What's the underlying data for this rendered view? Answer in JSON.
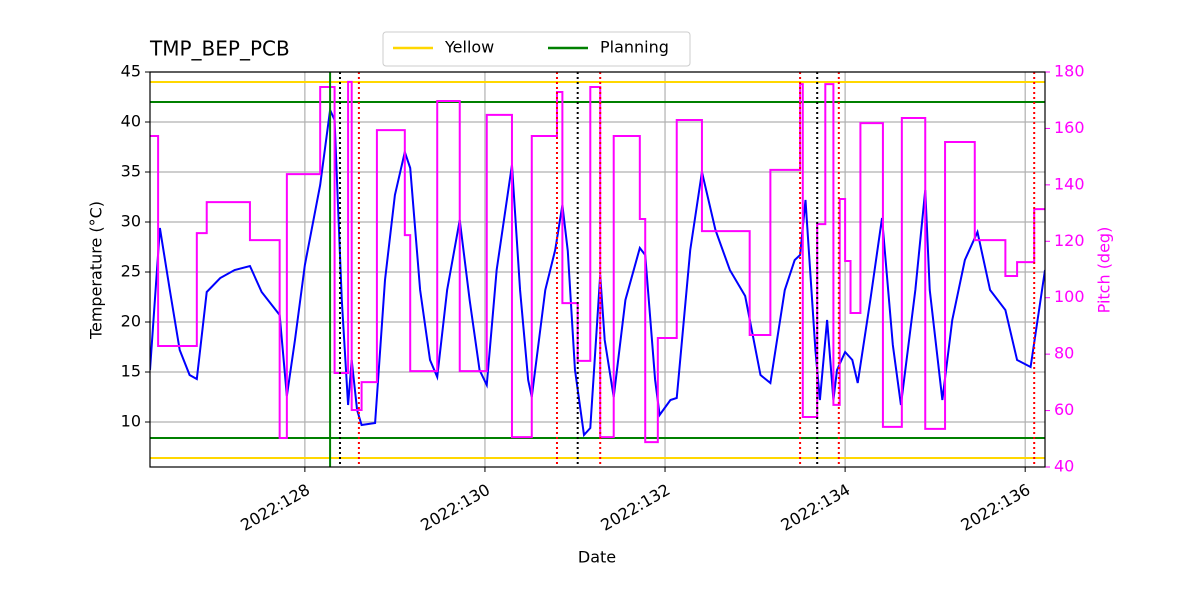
{
  "chart_data": {
    "type": "line",
    "title": "TMP_BEP_PCB",
    "xlabel": "Date",
    "ylabel": "Temperature (°C)",
    "y2label": "Pitch (deg)",
    "xlim": [
      126.28,
      136.22
    ],
    "xticks": [
      {
        "value": 128,
        "label": "2022:128"
      },
      {
        "value": 130,
        "label": "2022:130"
      },
      {
        "value": 132,
        "label": "2022:132"
      },
      {
        "value": 134,
        "label": "2022:134"
      },
      {
        "value": 136,
        "label": "2022:136"
      }
    ],
    "ylim": [
      5.5,
      45
    ],
    "yticks": [
      10,
      15,
      20,
      25,
      30,
      35,
      40,
      45
    ],
    "y2lim": [
      40,
      180
    ],
    "y2ticks": [
      40,
      60,
      80,
      100,
      120,
      140,
      160,
      180
    ],
    "grid": true,
    "legend": "upper center",
    "limit_lines": [
      {
        "name": "Yellow",
        "color": "#ffd700",
        "values": [
          44,
          6.4
        ]
      },
      {
        "name": "Planning",
        "color": "#008000",
        "values": [
          42,
          8.4
        ]
      }
    ],
    "vlines": [
      {
        "color": "#008000",
        "style": "solid",
        "x": [
          128.28
        ]
      },
      {
        "color": "#000000",
        "style": "dotted",
        "x": [
          128.39,
          131.03,
          133.69
        ]
      },
      {
        "color": "#ff0000",
        "style": "dotted",
        "x": [
          128.6,
          130.8,
          131.28,
          133.5,
          133.93,
          136.1
        ]
      }
    ],
    "series": [
      {
        "color": "#0000ff",
        "step": false,
        "x": [
          126.28,
          126.39,
          126.5,
          126.61,
          126.72,
          126.8,
          126.91,
          127.06,
          127.22,
          127.39,
          127.52,
          127.72,
          127.8,
          127.89,
          128.0,
          128.17,
          128.28,
          128.33,
          128.41,
          128.48,
          128.52,
          128.58,
          128.63,
          128.78,
          128.89,
          129.0,
          129.11,
          129.17,
          129.28,
          129.39,
          129.47,
          129.58,
          129.72,
          129.83,
          129.94,
          130.02,
          130.13,
          130.3,
          130.39,
          130.48,
          130.52,
          130.67,
          130.78,
          130.86,
          130.92,
          131.0,
          131.1,
          131.17,
          131.28,
          131.33,
          131.43,
          131.56,
          131.72,
          131.78,
          131.89,
          131.94,
          132.06,
          132.13,
          132.28,
          132.41,
          132.56,
          132.72,
          132.89,
          133.06,
          133.17,
          133.33,
          133.44,
          133.5,
          133.56,
          133.67,
          133.72,
          133.8,
          133.87,
          133.91,
          134.0,
          134.08,
          134.14,
          134.28,
          134.41,
          134.53,
          134.62,
          134.78,
          134.89,
          134.94,
          135.08,
          135.19,
          135.33,
          135.47,
          135.61,
          135.78,
          135.91,
          136.06,
          136.22
        ],
        "values": [
          15.2,
          29.4,
          23.2,
          17.2,
          14.7,
          14.3,
          23.0,
          24.4,
          25.2,
          25.6,
          23.0,
          20.7,
          12.6,
          18.2,
          25.7,
          33.7,
          41.2,
          40.2,
          22.2,
          11.7,
          16.2,
          11.2,
          9.7,
          9.9,
          24.2,
          32.7,
          37.0,
          35.4,
          23.2,
          16.2,
          14.5,
          23.2,
          30.2,
          22.2,
          15.2,
          13.7,
          25.2,
          35.7,
          23.2,
          14.2,
          12.5,
          23.2,
          27.2,
          31.7,
          27.1,
          15.2,
          8.7,
          9.4,
          24.7,
          18.2,
          12.5,
          22.2,
          27.4,
          26.7,
          14.2,
          10.7,
          12.2,
          12.4,
          27.2,
          35.0,
          29.2,
          25.2,
          22.6,
          14.7,
          13.9,
          23.2,
          26.2,
          26.7,
          32.2,
          17.2,
          12.2,
          20.2,
          12.2,
          15.2,
          17.0,
          16.2,
          13.9,
          22.2,
          30.4,
          17.7,
          11.7,
          23.2,
          33.2,
          23.2,
          12.2,
          20.2,
          26.2,
          29.0,
          23.2,
          21.2,
          16.2,
          15.5,
          25.2
        ]
      },
      {
        "color": "#ff00ff",
        "axis": "y2",
        "step": true,
        "x": [
          126.28,
          126.37,
          126.8,
          126.91,
          127.39,
          127.72,
          127.8,
          128.17,
          128.33,
          128.48,
          128.52,
          128.63,
          128.8,
          129.11,
          129.17,
          129.47,
          129.72,
          130.02,
          130.3,
          130.52,
          130.8,
          130.86,
          131.03,
          131.17,
          131.28,
          131.43,
          131.72,
          131.78,
          131.92,
          132.13,
          132.41,
          132.94,
          133.17,
          133.5,
          133.53,
          133.69,
          133.78,
          133.87,
          133.94,
          134.0,
          134.06,
          134.17,
          134.42,
          134.63,
          134.89,
          135.11,
          135.44,
          135.78,
          135.91,
          136.1
        ],
        "values": [
          157.3,
          82.9,
          122.9,
          133.9,
          120.4,
          50.3,
          143.8,
          174.7,
          73.3,
          176.5,
          60.2,
          70.1,
          159.4,
          122.2,
          74.0,
          169.7,
          74.0,
          164.8,
          50.6,
          157.3,
          172.9,
          98.1,
          77.6,
          174.7,
          50.6,
          157.3,
          127.9,
          48.8,
          85.7,
          163.0,
          123.6,
          86.8,
          145.3,
          175.7,
          57.7,
          126.1,
          175.7,
          62.0,
          135.0,
          113.0,
          94.6,
          161.9,
          54.2,
          163.7,
          53.5,
          155.2,
          120.4,
          107.7,
          112.6,
          131.4
        ]
      }
    ]
  }
}
